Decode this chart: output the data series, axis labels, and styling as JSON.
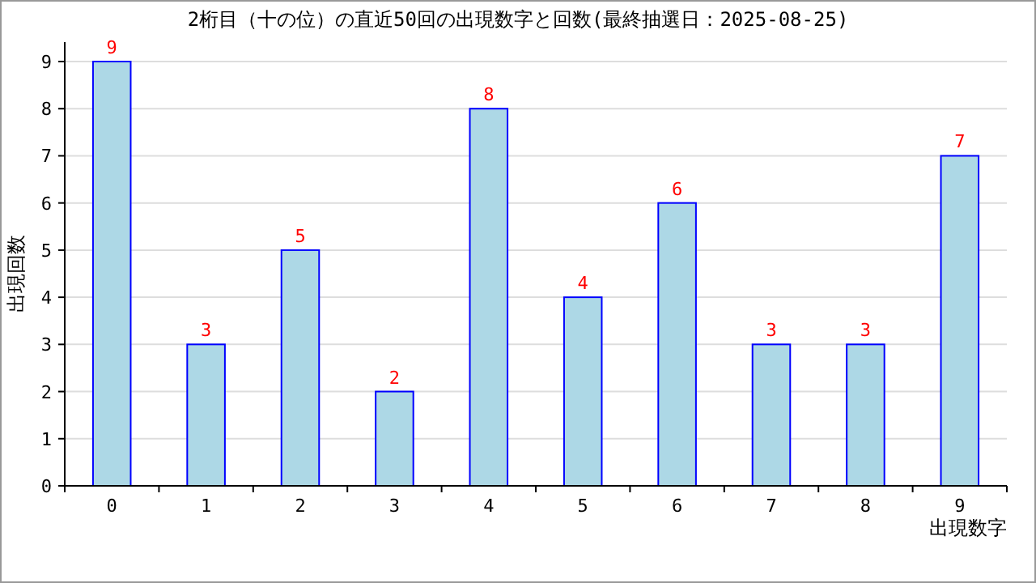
{
  "chart_data": {
    "type": "bar",
    "title": "2桁目（十の位）の直近50回の出現数字と回数(最終抽選日：2025-08-25)",
    "xlabel": "出現数字",
    "ylabel": "出現回数",
    "categories": [
      "0",
      "1",
      "2",
      "3",
      "4",
      "5",
      "6",
      "7",
      "8",
      "9"
    ],
    "values": [
      9,
      3,
      5,
      2,
      8,
      4,
      6,
      3,
      3,
      7
    ],
    "color": "#add8e6",
    "ylim": [
      0,
      9
    ],
    "yticks": [
      0,
      1,
      2,
      3,
      4,
      5,
      6,
      7,
      8,
      9
    ],
    "grid": "y",
    "data_labels": true
  }
}
